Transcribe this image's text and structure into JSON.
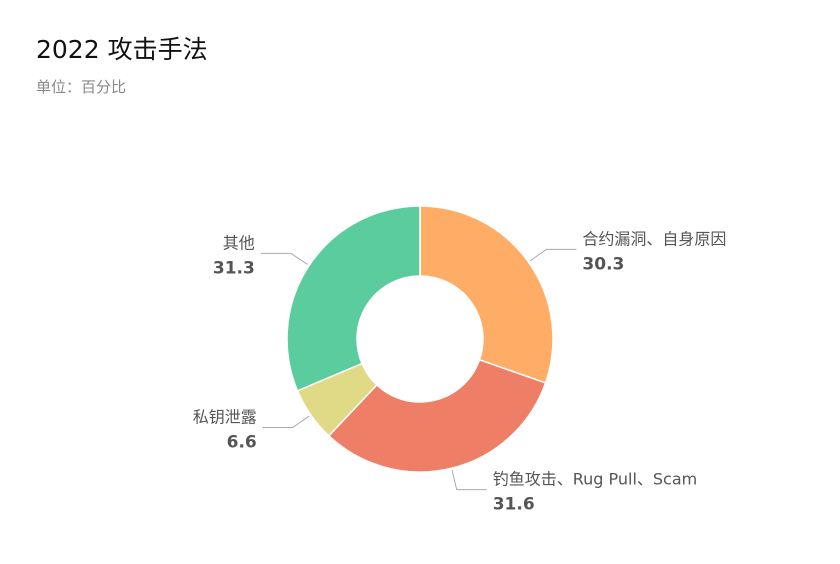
{
  "chart_data": {
    "type": "pie",
    "variant": "donut",
    "title": "2022 攻击手法",
    "subtitle": "单位：百分比",
    "categories": [
      "合约漏洞、自身原因",
      "钓鱼攻击、Rug Pull、Scam",
      "私钥泄露",
      "其他"
    ],
    "values": [
      30.3,
      31.6,
      6.6,
      31.3
    ],
    "colors": [
      "#ffad66",
      "#ee7e66",
      "#e0d985",
      "#5bcc9e"
    ],
    "start_angle": "12 o'clock, clockwise",
    "legend": "none"
  }
}
